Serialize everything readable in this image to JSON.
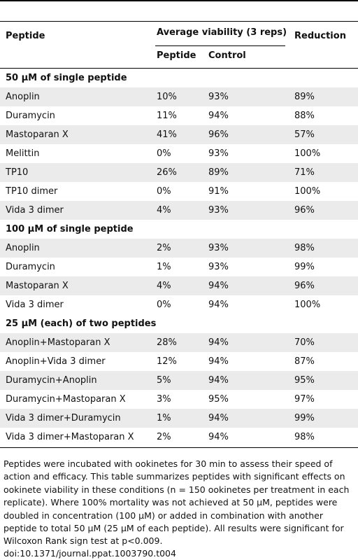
{
  "table": {
    "header": {
      "col0": "Peptide",
      "group": "Average viability (3 reps)",
      "col3": "Reduction",
      "sub1": "Peptide",
      "sub2": "Control"
    },
    "sections": [
      {
        "title": "50 µM of single peptide",
        "rows": [
          [
            "Anoplin",
            "10%",
            "93%",
            "89%"
          ],
          [
            "Duramycin",
            "11%",
            "94%",
            "88%"
          ],
          [
            "Mastoparan X",
            "41%",
            "96%",
            "57%"
          ],
          [
            "Melittin",
            "0%",
            "93%",
            "100%"
          ],
          [
            "TP10",
            "26%",
            "89%",
            "71%"
          ],
          [
            "TP10 dimer",
            "0%",
            "91%",
            "100%"
          ],
          [
            "Vida 3 dimer",
            "4%",
            "93%",
            "96%"
          ]
        ]
      },
      {
        "title": "100 µM of single peptide",
        "rows": [
          [
            "Anoplin",
            "2%",
            "93%",
            "98%"
          ],
          [
            "Duramycin",
            "1%",
            "93%",
            "99%"
          ],
          [
            "Mastoparan X",
            "4%",
            "94%",
            "96%"
          ],
          [
            "Vida 3 dimer",
            "0%",
            "94%",
            "100%"
          ]
        ]
      },
      {
        "title": "25 µM (each) of two peptides",
        "rows": [
          [
            "Anoplin+Mastoparan X",
            "28%",
            "94%",
            "70%"
          ],
          [
            "Anoplin+Vida 3 dimer",
            "12%",
            "94%",
            "87%"
          ],
          [
            "Duramycin+Anoplin",
            "5%",
            "94%",
            "95%"
          ],
          [
            "Duramycin+Mastoparan X",
            "3%",
            "95%",
            "97%"
          ],
          [
            "Vida 3 dimer+Duramycin",
            "1%",
            "94%",
            "99%"
          ],
          [
            "Vida 3 dimer+Mastoparan X",
            "2%",
            "94%",
            "98%"
          ]
        ]
      }
    ]
  },
  "footnote": "Peptides were incubated with ookinetes for 30 min to assess their speed of action and efficacy. This table summarizes peptides with significant effects on ookinete viability in these conditions (n = 150 ookinetes per treatment in each replicate). Where 100% mortality was not achieved at 50 µM, peptides were doubled in concentration (100 µM) or added in combination with another peptide to total 50 µM (25 µM of each peptide). All results were significant for Wilcoxon Rank sign test at p<0.009.",
  "doi": "doi:10.1371/journal.ppat.1003790.t004"
}
